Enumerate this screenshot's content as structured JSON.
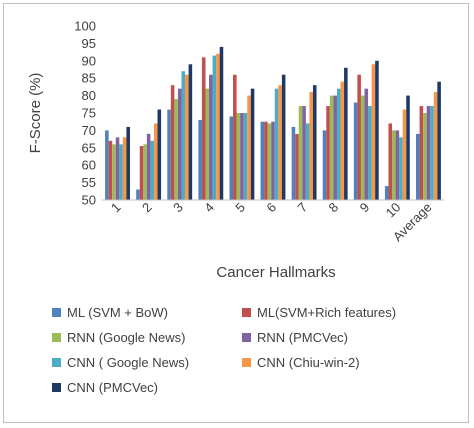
{
  "chart_data": {
    "type": "bar",
    "title": "",
    "xlabel": "Cancer Hallmarks",
    "ylabel": "F-Score (%)",
    "ylim": [
      50,
      100
    ],
    "yticks": [
      "50",
      "55",
      "60",
      "65",
      "70",
      "75",
      "80",
      "85",
      "90",
      "95",
      "100"
    ],
    "categories": [
      "1",
      "2",
      "3",
      "4",
      "5",
      "6",
      "7",
      "8",
      "9",
      "10",
      "Average"
    ],
    "legend_position": "bottom",
    "grid": false,
    "series": [
      {
        "name": "ML (SVM + BoW)",
        "color": "#4f81bd",
        "values": [
          70,
          53,
          76,
          73,
          74,
          72.5,
          71,
          70,
          78,
          54,
          69
        ]
      },
      {
        "name": "ML(SVM+Rich features)",
        "color": "#c0504d",
        "values": [
          67,
          65.5,
          83,
          91,
          86,
          72.5,
          69,
          77,
          86,
          72,
          77
        ]
      },
      {
        "name": "RNN (Google News)",
        "color": "#9bbb59",
        "values": [
          66,
          66,
          79,
          82,
          75,
          72,
          77,
          80,
          80,
          70,
          75
        ]
      },
      {
        "name": "RNN (PMCVec)",
        "color": "#8064a2",
        "values": [
          68,
          69,
          82,
          86,
          75,
          72.5,
          77,
          80,
          82,
          70,
          77
        ]
      },
      {
        "name": "CNN ( Google News)",
        "color": "#4bacc6",
        "values": [
          66,
          67,
          87,
          91.5,
          75,
          82,
          72,
          82,
          77,
          68,
          77
        ]
      },
      {
        "name": "CNN (Chiu-win-2)",
        "color": "#f79646",
        "values": [
          68,
          72,
          86,
          92,
          80,
          83,
          81,
          84,
          89,
          76,
          81
        ]
      },
      {
        "name": "CNN (PMCVec)",
        "color": "#1f3864",
        "values": [
          71,
          76,
          89,
          94,
          82,
          86,
          83,
          88,
          90,
          80,
          84
        ]
      }
    ]
  }
}
